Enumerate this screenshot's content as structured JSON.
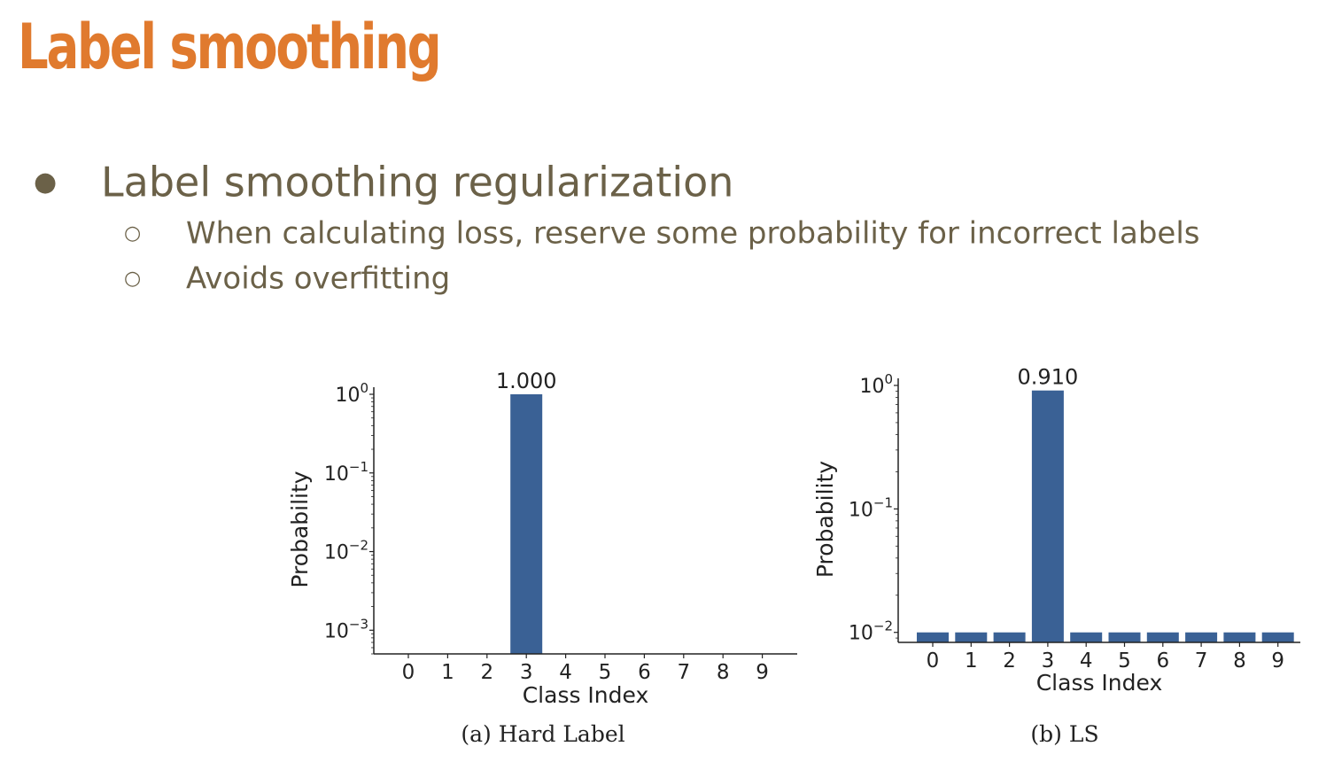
{
  "slide": {
    "title": "Label smoothing",
    "bullets": [
      {
        "text": "Label smoothing regularization",
        "sub": [
          "When calculating loss, reserve some probability for incorrect labels",
          "Avoids overfitting"
        ]
      }
    ]
  },
  "colors": {
    "title": "#e07a2e",
    "body_text": "#6b6148",
    "bar": "#3a6195",
    "axis": "#222222"
  },
  "chart_data": [
    {
      "type": "bar",
      "caption": "(a) Hard Label",
      "categories": [
        "0",
        "1",
        "2",
        "3",
        "4",
        "5",
        "6",
        "7",
        "8",
        "9"
      ],
      "values": [
        0,
        0,
        0,
        1.0,
        0,
        0,
        0,
        0,
        0,
        0
      ],
      "data_labels": [
        {
          "index": 3,
          "text": "1.000"
        }
      ],
      "xlabel": "Class Index",
      "ylabel": "Probability",
      "yscale": "log",
      "ylim": [
        0.0005,
        1
      ],
      "yticks": [
        {
          "exp": "0",
          "value": 1
        },
        {
          "exp": "−1",
          "value": 0.1
        },
        {
          "exp": "−2",
          "value": 0.01
        },
        {
          "exp": "−3",
          "value": 0.001
        }
      ],
      "grid": false
    },
    {
      "type": "bar",
      "caption": "(b) LS",
      "categories": [
        "0",
        "1",
        "2",
        "3",
        "4",
        "5",
        "6",
        "7",
        "8",
        "9"
      ],
      "values": [
        0.01,
        0.01,
        0.01,
        0.91,
        0.01,
        0.01,
        0.01,
        0.01,
        0.01,
        0.01
      ],
      "data_labels": [
        {
          "index": 3,
          "text": "0.910"
        }
      ],
      "xlabel": "Class Index",
      "ylabel": "Probability",
      "yscale": "log",
      "ylim": [
        0.0083,
        1
      ],
      "yticks": [
        {
          "exp": "0",
          "value": 1
        },
        {
          "exp": "−1",
          "value": 0.1
        },
        {
          "exp": "−2",
          "value": 0.01
        }
      ],
      "grid": false
    }
  ]
}
